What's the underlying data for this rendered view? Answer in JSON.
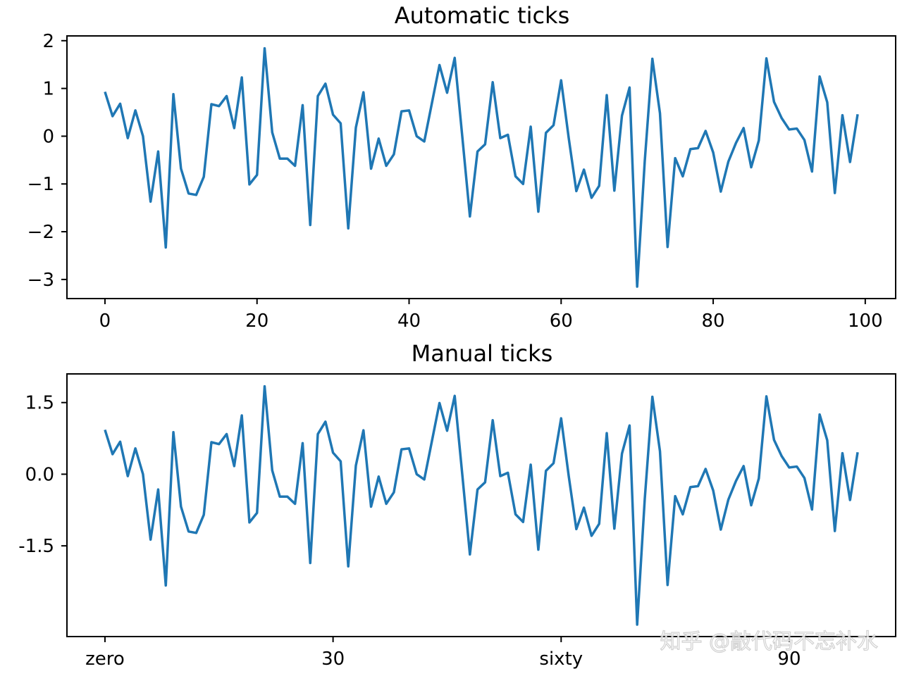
{
  "watermark": "知乎 @敲代码不忘补水",
  "chart_data": [
    {
      "type": "line",
      "title": "Automatic ticks",
      "x": [
        0,
        1,
        2,
        3,
        4,
        5,
        6,
        7,
        8,
        9,
        10,
        11,
        12,
        13,
        14,
        15,
        16,
        17,
        18,
        19,
        20,
        21,
        22,
        23,
        24,
        25,
        26,
        27,
        28,
        29,
        30,
        31,
        32,
        33,
        34,
        35,
        36,
        37,
        38,
        39,
        40,
        41,
        42,
        43,
        44,
        45,
        46,
        47,
        48,
        49,
        50,
        51,
        52,
        53,
        54,
        55,
        56,
        57,
        58,
        59,
        60,
        61,
        62,
        63,
        64,
        65,
        66,
        67,
        68,
        69,
        70,
        71,
        72,
        73,
        74,
        75,
        76,
        77,
        78,
        79,
        80,
        81,
        82,
        83,
        84,
        85,
        86,
        87,
        88,
        89,
        90,
        91,
        92,
        93,
        94,
        95,
        96,
        97,
        98,
        99
      ],
      "xticks": [
        0,
        20,
        40,
        60,
        80,
        100
      ],
      "xtick_labels": [
        "0",
        "20",
        "40",
        "60",
        "80",
        "100"
      ],
      "yticks": [
        -3,
        -2,
        -1,
        0,
        1,
        2
      ],
      "ytick_labels": [
        "−3",
        "−2",
        "−1",
        "0",
        "1",
        "2"
      ],
      "xlim": [
        -5,
        104
      ],
      "ylim": [
        -3.4,
        2.1
      ],
      "color": "#1f77b4",
      "grid": false
    },
    {
      "type": "line",
      "title": "Manual ticks",
      "xticks": [
        0,
        30,
        60,
        90
      ],
      "xtick_labels": [
        "zero",
        "30",
        "sixty",
        "90"
      ],
      "yticks": [
        -1.5,
        0.0,
        1.5
      ],
      "ytick_labels": [
        "-1.5",
        "0.0",
        "1.5"
      ],
      "xlim": [
        -5,
        104
      ],
      "ylim": [
        -3.4,
        2.1
      ],
      "color": "#1f77b4",
      "grid": false
    }
  ],
  "series_values": [
    0.93,
    0.42,
    0.68,
    -0.04,
    0.54,
    0.0,
    -1.37,
    -0.32,
    -2.33,
    0.88,
    -0.68,
    -1.2,
    -1.23,
    -0.85,
    0.67,
    0.63,
    0.84,
    0.17,
    1.23,
    -1.01,
    -0.81,
    1.84,
    0.08,
    -0.47,
    -0.47,
    -0.62,
    0.65,
    -1.86,
    0.84,
    1.1,
    0.45,
    0.27,
    -1.93,
    0.18,
    0.92,
    -0.68,
    -0.05,
    -0.62,
    -0.38,
    0.52,
    0.54,
    0.0,
    -0.11,
    0.69,
    1.49,
    0.91,
    1.64,
    -0.01,
    -1.68,
    -0.32,
    -0.17,
    1.13,
    -0.04,
    0.03,
    -0.84,
    -1.0,
    0.2,
    -1.58,
    0.07,
    0.23,
    1.17,
    -0.04,
    -1.15,
    -0.7,
    -1.29,
    -1.04,
    0.86,
    -1.14,
    0.43,
    1.02,
    -3.15,
    -0.52,
    1.62,
    0.48,
    -2.32,
    -0.46,
    -0.84,
    -0.27,
    -0.25,
    0.11,
    -0.34,
    -1.16,
    -0.53,
    -0.14,
    0.17,
    -0.65,
    -0.09,
    1.63,
    0.72,
    0.38,
    0.14,
    0.16,
    -0.08,
    -0.74,
    1.25,
    0.71,
    -1.19,
    0.44,
    -0.54,
    0.46
  ]
}
